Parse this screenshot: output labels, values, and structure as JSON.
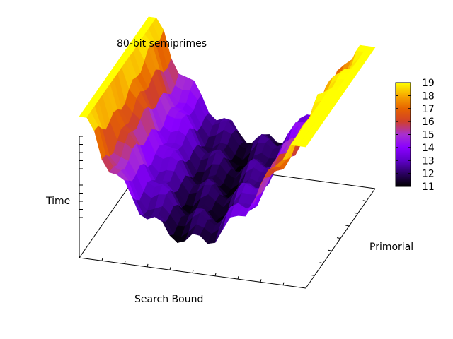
{
  "chart_data": {
    "type": "surface",
    "title": "80-bit semiprimes",
    "xlabel": "Search Bound",
    "ylabel": "Primorial",
    "zlabel": "Time",
    "grid": false,
    "colorbox": {
      "position": "right",
      "range": [
        11,
        19
      ],
      "ticks": [
        "19",
        "18",
        "17",
        "16",
        "15",
        "14",
        "13",
        "12",
        "11"
      ],
      "palette": [
        "#000000",
        "#2b0062",
        "#5e00c8",
        "#8a00ff",
        "#a82fd0",
        "#d0402a",
        "#e66300",
        "#f7a800",
        "#ffff00"
      ]
    },
    "surface_description": "valley-shaped surface, high at both Search Bound ends (~16-19), low in the middle (~11-13)"
  }
}
